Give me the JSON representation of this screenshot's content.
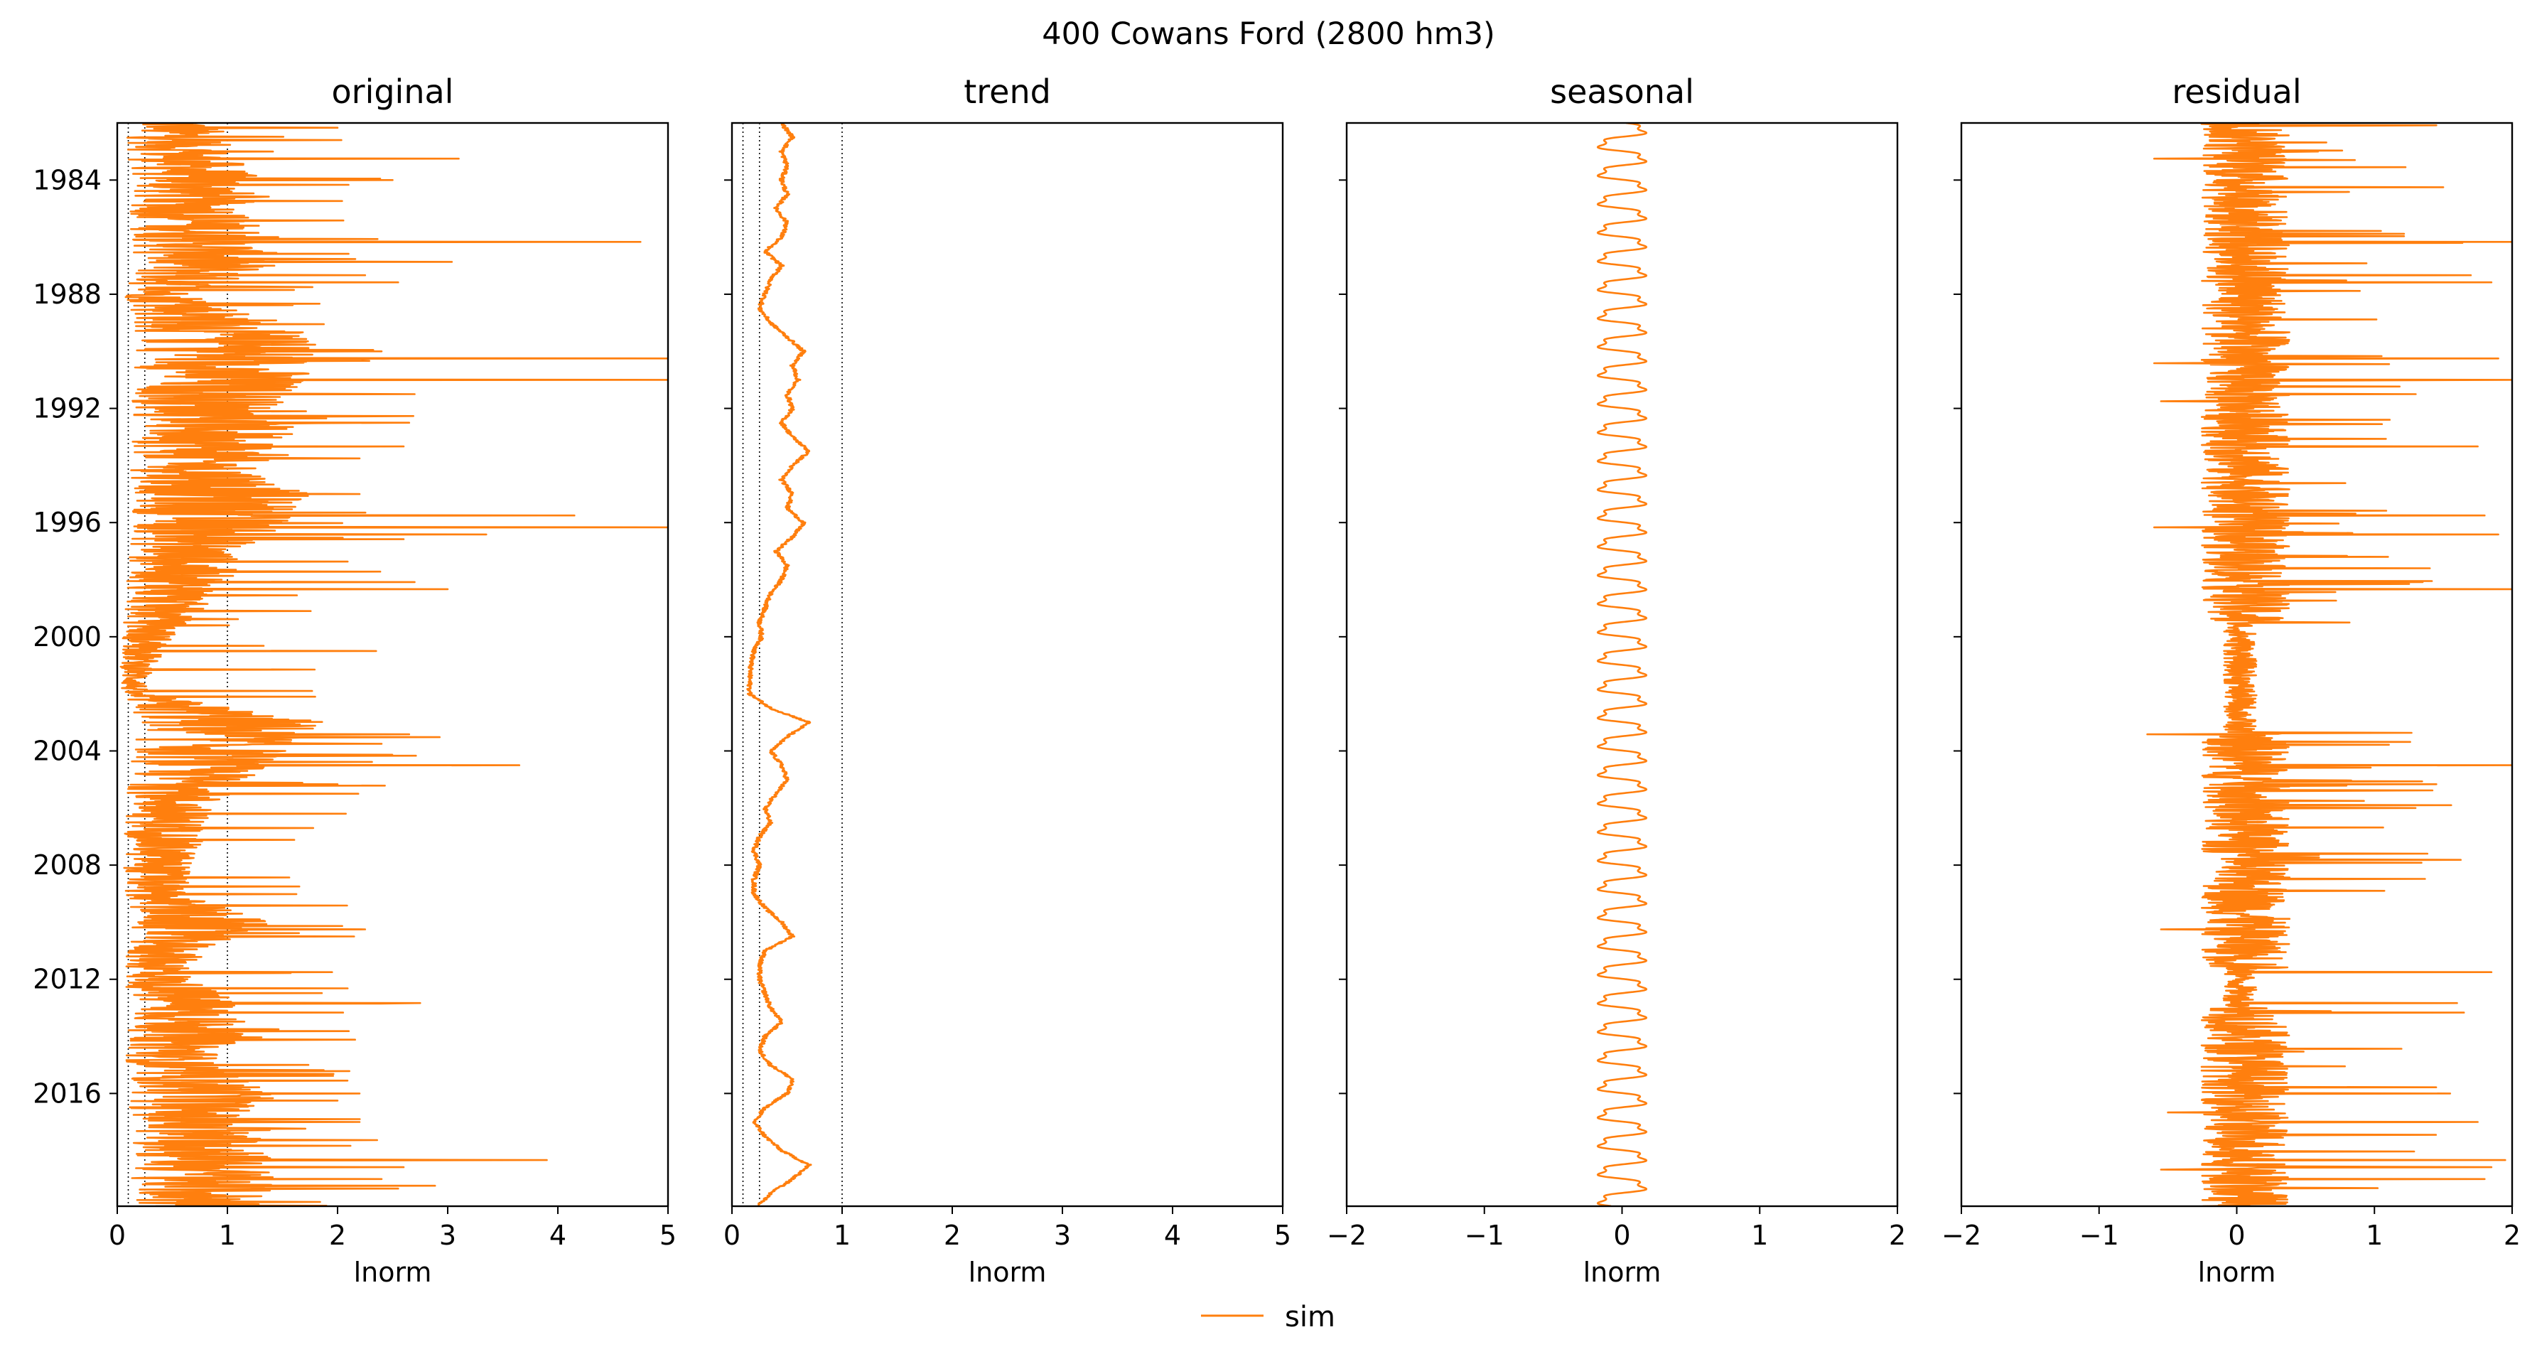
{
  "figure": {
    "suptitle": "400  Cowans Ford (2800 hm3)",
    "legend_label": "sim",
    "line_color": "#ff7f0e"
  },
  "chart_data": [
    {
      "type": "line",
      "title": "original",
      "xlabel": "lnorm",
      "ylabel": "",
      "xlim": [
        0,
        5
      ],
      "xticks": [
        "0",
        "1",
        "2",
        "3",
        "4",
        "5"
      ],
      "xtick_values": [
        0,
        1,
        2,
        3,
        4,
        5
      ],
      "ylim": [
        "1982-01",
        "2019-12"
      ],
      "yticks": [
        "1984",
        "1988",
        "1992",
        "1996",
        "2000",
        "2004",
        "2008",
        "2012",
        "2016"
      ],
      "reference_lines_x": [
        0.1,
        0.25,
        1.0
      ],
      "series": [
        {
          "name": "sim",
          "values": [
            [
              1982,
              0.55
            ],
            [
              1983,
              0.6
            ],
            [
              1984,
              0.75
            ],
            [
              1985,
              0.7
            ],
            [
              1986,
              0.8
            ],
            [
              1987,
              0.85
            ],
            [
              1988,
              0.4
            ],
            [
              1989,
              0.9
            ],
            [
              1990,
              1.1
            ],
            [
              1991,
              1.0
            ],
            [
              1992,
              0.85
            ],
            [
              1993,
              0.95
            ],
            [
              1994,
              0.75
            ],
            [
              1995,
              1.0
            ],
            [
              1996,
              0.9
            ],
            [
              1997,
              0.65
            ],
            [
              1998,
              0.6
            ],
            [
              1999,
              0.45
            ],
            [
              2000,
              0.3
            ],
            [
              2001,
              0.2
            ],
            [
              2002,
              0.15
            ],
            [
              2003,
              1.1
            ],
            [
              2004,
              0.9
            ],
            [
              2005,
              0.7
            ],
            [
              2006,
              0.5
            ],
            [
              2007,
              0.45
            ],
            [
              2008,
              0.4
            ],
            [
              2009,
              0.35
            ],
            [
              2010,
              0.8
            ],
            [
              2011,
              0.45
            ],
            [
              2012,
              0.4
            ],
            [
              2013,
              0.7
            ],
            [
              2014,
              0.65
            ],
            [
              2015,
              0.5
            ],
            [
              2016,
              0.85
            ],
            [
              2017,
              0.6
            ],
            [
              2018,
              0.9
            ],
            [
              2019,
              0.8
            ]
          ]
        }
      ],
      "peaks": [
        [
          "1982-03",
          2.0
        ],
        [
          "1983-04",
          3.1
        ],
        [
          "1984-01",
          2.5
        ],
        [
          "1984-03",
          2.1
        ],
        [
          "1986-03",
          4.75
        ],
        [
          "1986-08",
          2.1
        ],
        [
          "1987-05",
          2.25
        ],
        [
          "1987-08",
          2.55
        ],
        [
          "1990-01",
          2.4
        ],
        [
          "1990-04",
          5.0
        ],
        [
          "1991-01",
          5.0
        ],
        [
          "1991-07",
          2.7
        ],
        [
          "1992-07",
          2.65
        ],
        [
          "1993-05",
          2.6
        ],
        [
          "1993-10",
          2.2
        ],
        [
          "1995-01",
          2.2
        ],
        [
          "1995-10",
          4.15
        ],
        [
          "1996-03",
          5.0
        ],
        [
          "1996-06",
          3.35
        ],
        [
          "1996-08",
          2.6
        ],
        [
          "1998-05",
          3.0
        ],
        [
          "1998-02",
          2.7
        ],
        [
          "2000-07",
          2.35
        ],
        [
          "2003-06",
          2.65
        ],
        [
          "2003-10",
          2.4
        ],
        [
          "2004-07",
          3.65
        ],
        [
          "2005-03",
          2.0
        ],
        [
          "2010-04",
          2.25
        ],
        [
          "2010-07",
          2.15
        ],
        [
          "2011-10",
          1.95
        ],
        [
          "2012-11",
          2.75
        ],
        [
          "2013-03",
          2.05
        ],
        [
          "2016-01",
          2.2
        ],
        [
          "2016-04",
          2.0
        ],
        [
          "2017-01",
          2.2
        ],
        [
          "2018-05",
          3.9
        ],
        [
          "2018-08",
          2.6
        ],
        [
          "2019-01",
          2.4
        ],
        [
          "2019-05",
          2.55
        ]
      ]
    },
    {
      "type": "line",
      "title": "trend",
      "xlabel": "lnorm",
      "ylabel": "",
      "xlim": [
        0,
        5
      ],
      "xticks": [
        "0",
        "1",
        "2",
        "3",
        "4",
        "5"
      ],
      "xtick_values": [
        0,
        1,
        2,
        3,
        4,
        5
      ],
      "ylim": [
        "1982-01",
        "2019-12"
      ],
      "reference_lines_x": [
        0.1,
        0.25,
        1.0
      ],
      "series": [
        {
          "name": "sim",
          "values": [
            [
              1982.0,
              0.45
            ],
            [
              1982.5,
              0.55
            ],
            [
              1983.0,
              0.45
            ],
            [
              1983.5,
              0.5
            ],
            [
              1984.0,
              0.45
            ],
            [
              1984.5,
              0.5
            ],
            [
              1985.0,
              0.4
            ],
            [
              1985.5,
              0.5
            ],
            [
              1986.0,
              0.45
            ],
            [
              1986.5,
              0.3
            ],
            [
              1987.0,
              0.45
            ],
            [
              1987.5,
              0.35
            ],
            [
              1988.0,
              0.3
            ],
            [
              1988.5,
              0.25
            ],
            [
              1989.0,
              0.35
            ],
            [
              1989.5,
              0.5
            ],
            [
              1990.0,
              0.65
            ],
            [
              1990.5,
              0.55
            ],
            [
              1991.0,
              0.6
            ],
            [
              1991.5,
              0.5
            ],
            [
              1992.0,
              0.55
            ],
            [
              1992.5,
              0.45
            ],
            [
              1993.0,
              0.55
            ],
            [
              1993.5,
              0.7
            ],
            [
              1994.0,
              0.55
            ],
            [
              1994.5,
              0.45
            ],
            [
              1995.0,
              0.55
            ],
            [
              1995.5,
              0.5
            ],
            [
              1996.0,
              0.65
            ],
            [
              1996.5,
              0.55
            ],
            [
              1997.0,
              0.4
            ],
            [
              1997.5,
              0.5
            ],
            [
              1998.0,
              0.45
            ],
            [
              1998.5,
              0.35
            ],
            [
              1999.0,
              0.3
            ],
            [
              1999.5,
              0.25
            ],
            [
              2000.0,
              0.27
            ],
            [
              2000.5,
              0.2
            ],
            [
              2001.0,
              0.17
            ],
            [
              2001.5,
              0.16
            ],
            [
              2002.0,
              0.16
            ],
            [
              2002.5,
              0.35
            ],
            [
              2003.0,
              0.7
            ],
            [
              2003.5,
              0.5
            ],
            [
              2004.0,
              0.35
            ],
            [
              2004.5,
              0.45
            ],
            [
              2005.0,
              0.5
            ],
            [
              2005.5,
              0.4
            ],
            [
              2006.0,
              0.3
            ],
            [
              2006.5,
              0.35
            ],
            [
              2007.0,
              0.25
            ],
            [
              2007.5,
              0.2
            ],
            [
              2008.0,
              0.25
            ],
            [
              2008.5,
              0.2
            ],
            [
              2009.0,
              0.2
            ],
            [
              2009.5,
              0.3
            ],
            [
              2010.0,
              0.45
            ],
            [
              2010.5,
              0.55
            ],
            [
              2011.0,
              0.3
            ],
            [
              2011.5,
              0.25
            ],
            [
              2012.0,
              0.25
            ],
            [
              2012.5,
              0.3
            ],
            [
              2013.0,
              0.35
            ],
            [
              2013.5,
              0.45
            ],
            [
              2014.0,
              0.3
            ],
            [
              2014.5,
              0.25
            ],
            [
              2015.0,
              0.35
            ],
            [
              2015.5,
              0.55
            ],
            [
              2016.0,
              0.5
            ],
            [
              2016.5,
              0.3
            ],
            [
              2017.0,
              0.2
            ],
            [
              2017.5,
              0.3
            ],
            [
              2018.0,
              0.45
            ],
            [
              2018.5,
              0.7
            ],
            [
              2019.0,
              0.55
            ],
            [
              2019.5,
              0.35
            ],
            [
              2019.9,
              0.25
            ]
          ]
        }
      ]
    },
    {
      "type": "line",
      "title": "seasonal",
      "xlabel": "lnorm",
      "ylabel": "",
      "xlim": [
        -2,
        2
      ],
      "xticks": [
        "−2",
        "−1",
        "0",
        "1",
        "2"
      ],
      "xtick_values": [
        -2,
        -1,
        0,
        1,
        2
      ],
      "ylim": [
        "1982-01",
        "2019-12"
      ],
      "amplitude": [
        -0.2,
        0.2
      ],
      "period_years": 1,
      "series": [
        {
          "name": "sim",
          "values": []
        }
      ]
    },
    {
      "type": "line",
      "title": "residual",
      "xlabel": "lnorm",
      "ylabel": "",
      "xlim": [
        -2,
        2
      ],
      "xticks": [
        "−2",
        "−1",
        "0",
        "1",
        "2"
      ],
      "xtick_values": [
        -2,
        -1,
        0,
        1,
        2
      ],
      "ylim": [
        "1982-01",
        "2019-12"
      ],
      "peaks": [
        [
          "1982-02",
          1.45
        ],
        [
          "1983-04",
          1.65
        ],
        [
          "1984-04",
          1.5
        ],
        [
          "1986-03",
          2.0
        ],
        [
          "1987-05",
          1.7
        ],
        [
          "1987-08",
          1.85
        ],
        [
          "1990-04",
          1.9
        ],
        [
          "1991-01",
          2.0
        ],
        [
          "1991-07",
          1.3
        ],
        [
          "1993-05",
          1.75
        ],
        [
          "1995-10",
          1.8
        ],
        [
          "1996-03",
          2.0
        ],
        [
          "1996-06",
          1.9
        ],
        [
          "1998-05",
          2.0
        ],
        [
          "1998-02",
          1.35
        ],
        [
          "2003-06",
          1.75
        ],
        [
          "2004-07",
          2.0
        ],
        [
          "2005-03",
          1.45
        ],
        [
          "2010-04",
          1.65
        ],
        [
          "2011-10",
          1.85
        ],
        [
          "2012-11",
          1.6
        ],
        [
          "2013-03",
          1.65
        ],
        [
          "2016-01",
          1.55
        ],
        [
          "2017-01",
          1.75
        ],
        [
          "2018-05",
          1.95
        ],
        [
          "2018-08",
          1.85
        ],
        [
          "2019-01",
          1.8
        ]
      ],
      "troughs": [
        [
          "1983-04",
          -0.6
        ],
        [
          "1990-06",
          -0.6
        ],
        [
          "1991-10",
          -0.55
        ],
        [
          "1996-03",
          -0.6
        ],
        [
          "2003-06",
          -0.65
        ],
        [
          "2010-04",
          -0.55
        ],
        [
          "2016-09",
          -0.5
        ],
        [
          "2018-09",
          -0.55
        ]
      ],
      "series": [
        {
          "name": "sim",
          "values": []
        }
      ]
    }
  ]
}
